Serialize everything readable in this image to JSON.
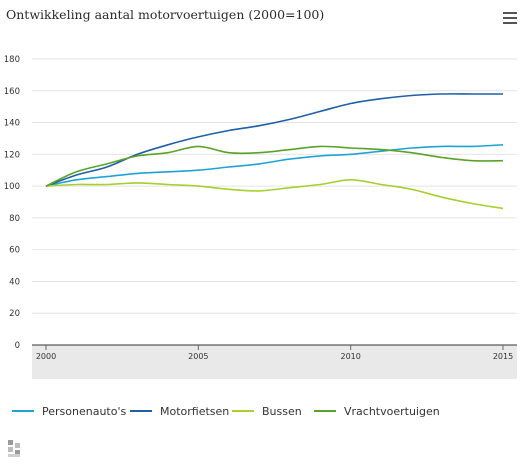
{
  "header": {
    "title": "Ontwikkeling aantal motorvoertuigen (2000=100)",
    "menu_icon": "hamburger-menu-icon"
  },
  "footer": {
    "logo_icon": "cbs-logo-icon"
  },
  "chart_data": {
    "type": "line",
    "title": "Ontwikkeling aantal motorvoertuigen (2000=100)",
    "x": [
      2000,
      2001,
      2002,
      2003,
      2004,
      2005,
      2006,
      2007,
      2008,
      2009,
      2010,
      2011,
      2012,
      2013,
      2014,
      2015
    ],
    "x_ticks": [
      "2000",
      "2005",
      "2010",
      "2015"
    ],
    "xlim": [
      2000,
      2015
    ],
    "y_ticks": [
      "0",
      "20",
      "40",
      "60",
      "80",
      "100",
      "120",
      "140",
      "160",
      "180"
    ],
    "ylim": [
      0,
      180
    ],
    "grid": true,
    "legend_position": "bottom",
    "series": [
      {
        "name": "Personenauto's",
        "color": "#1fa3d6",
        "values": [
          100,
          104,
          106,
          108,
          109,
          110,
          112,
          114,
          117,
          119,
          120,
          122,
          124,
          125,
          125,
          126
        ]
      },
      {
        "name": "Motorfietsen",
        "color": "#1f5fa6",
        "values": [
          100,
          107,
          112,
          120,
          126,
          131,
          135,
          138,
          142,
          147,
          152,
          155,
          157,
          158,
          158,
          158
        ]
      },
      {
        "name": "Bussen",
        "color": "#a8cf2e",
        "values": [
          100,
          101,
          101,
          102,
          101,
          100,
          98,
          97,
          99,
          101,
          104,
          101,
          98,
          93,
          89,
          86
        ]
      },
      {
        "name": "Vrachtvoertuigen",
        "color": "#5aa228",
        "values": [
          100,
          109,
          114,
          119,
          121,
          125,
          121,
          121,
          123,
          125,
          124,
          123,
          121,
          118,
          116,
          116
        ]
      }
    ]
  }
}
